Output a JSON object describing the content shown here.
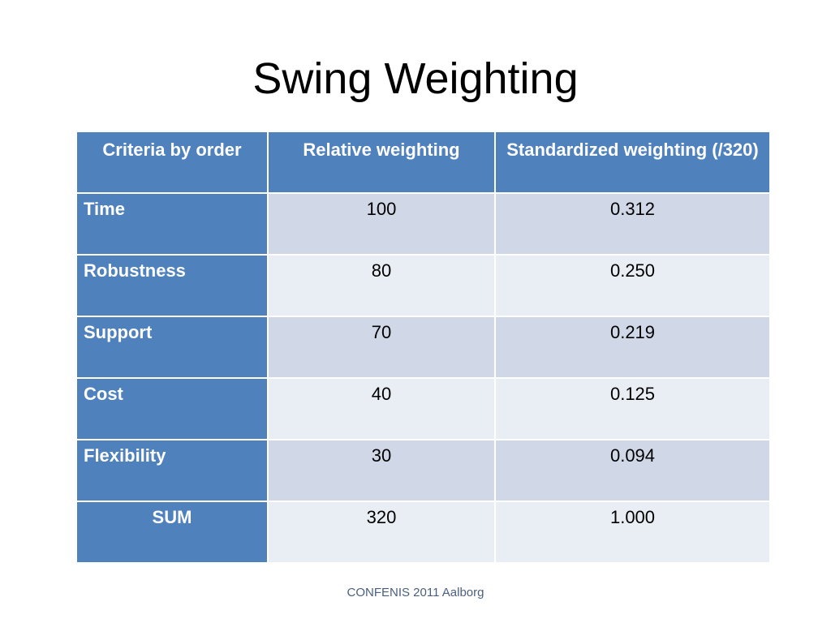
{
  "slide": {
    "title": "Swing Weighting",
    "footer": "CONFENIS 2011 Aalborg"
  },
  "table": {
    "headers": [
      "Criteria by order",
      "Relative weighting",
      "Standardized weighting (/320)"
    ],
    "rows": [
      {
        "criterion": "Time",
        "relative": "100",
        "standardized": "0.312"
      },
      {
        "criterion": "Robustness",
        "relative": "80",
        "standardized": "0.250"
      },
      {
        "criterion": "Support",
        "relative": "70",
        "standardized": "0.219"
      },
      {
        "criterion": "Cost",
        "relative": "40",
        "standardized": "0.125"
      },
      {
        "criterion": "Flexibility",
        "relative": "30",
        "standardized": "0.094"
      },
      {
        "criterion": "SUM",
        "relative": "320",
        "standardized": "1.000"
      }
    ]
  },
  "colors": {
    "header_fill": "#4f81bd",
    "band_dark": "#d0d8e8",
    "band_light": "#e9edf4"
  }
}
